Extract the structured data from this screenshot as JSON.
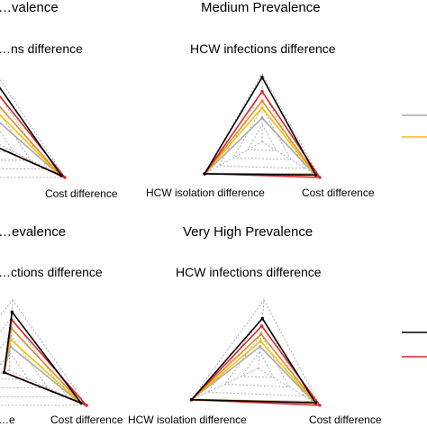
{
  "colors": {
    "black": "#000000",
    "red": "#d62728",
    "orange": "#e08a2c",
    "yellow": "#f2c200",
    "gray": "#aaaaaa",
    "grid": "#9a9aa6"
  },
  "chart_data": [
    {
      "type": "radar",
      "title": "…valence",
      "top_label": "…ns difference",
      "right_label": "Cost difference",
      "left_label": "",
      "series": [
        {
          "color": "black",
          "values": [
            0.87,
            0.95,
            0.06
          ]
        },
        {
          "color": "red",
          "values": [
            0.74,
            1.0,
            0.06
          ]
        },
        {
          "color": "orange",
          "values": [
            0.58,
            0.93,
            0.06
          ]
        },
        {
          "color": "yellow",
          "values": [
            0.46,
            0.92,
            0.06
          ]
        },
        {
          "color": "gray",
          "values": [
            0.34,
            0.9,
            0.06
          ]
        }
      ]
    },
    {
      "type": "radar",
      "title": "Medium Prevalence",
      "top_label": "HCW infections difference",
      "right_label": "Cost difference",
      "left_label": "HCW isolation difference",
      "series": [
        {
          "color": "black",
          "values": [
            0.95,
            0.93,
            1.0
          ]
        },
        {
          "color": "red",
          "values": [
            0.74,
            1.0,
            0.99
          ]
        },
        {
          "color": "orange",
          "values": [
            0.6,
            0.94,
            1.0
          ]
        },
        {
          "color": "yellow",
          "values": [
            0.5,
            0.92,
            0.99
          ]
        },
        {
          "color": "gray",
          "values": [
            0.35,
            0.9,
            0.99
          ]
        }
      ]
    },
    {
      "type": "radar",
      "title": "…evalence",
      "top_label": "…ctions difference",
      "right_label": "Cost difference",
      "left_label": "",
      "series": [
        {
          "color": "black",
          "values": [
            0.83,
            0.93,
            0.06
          ]
        },
        {
          "color": "red",
          "values": [
            0.72,
            1.0,
            0.06
          ]
        },
        {
          "color": "orange",
          "values": [
            0.6,
            0.94,
            0.06
          ]
        },
        {
          "color": "yellow",
          "values": [
            0.44,
            0.92,
            0.06
          ]
        },
        {
          "color": "gray",
          "values": [
            0.34,
            0.9,
            0.06
          ]
        }
      ]
    },
    {
      "type": "radar",
      "title": "Very High Prevalence",
      "top_label": "HCW infections difference",
      "right_label": "Cost difference",
      "left_label": "HCW isolation difference",
      "series": [
        {
          "color": "black",
          "values": [
            0.73,
            0.93,
            0.99
          ]
        },
        {
          "color": "red",
          "values": [
            0.62,
            1.0,
            0.99
          ]
        },
        {
          "color": "orange",
          "values": [
            0.5,
            0.94,
            1.0
          ]
        },
        {
          "color": "yellow",
          "values": [
            0.4,
            0.92,
            0.99
          ]
        },
        {
          "color": "gray",
          "values": [
            0.32,
            0.9,
            0.99
          ]
        }
      ]
    }
  ],
  "legend": {
    "entries": [
      {
        "color": "gray",
        "label": ""
      },
      {
        "color": "yellow",
        "label": ""
      },
      {
        "color": "black",
        "label": ""
      },
      {
        "color": "red",
        "label": ""
      }
    ]
  },
  "partial_text": {
    "cut_label": "…e"
  }
}
